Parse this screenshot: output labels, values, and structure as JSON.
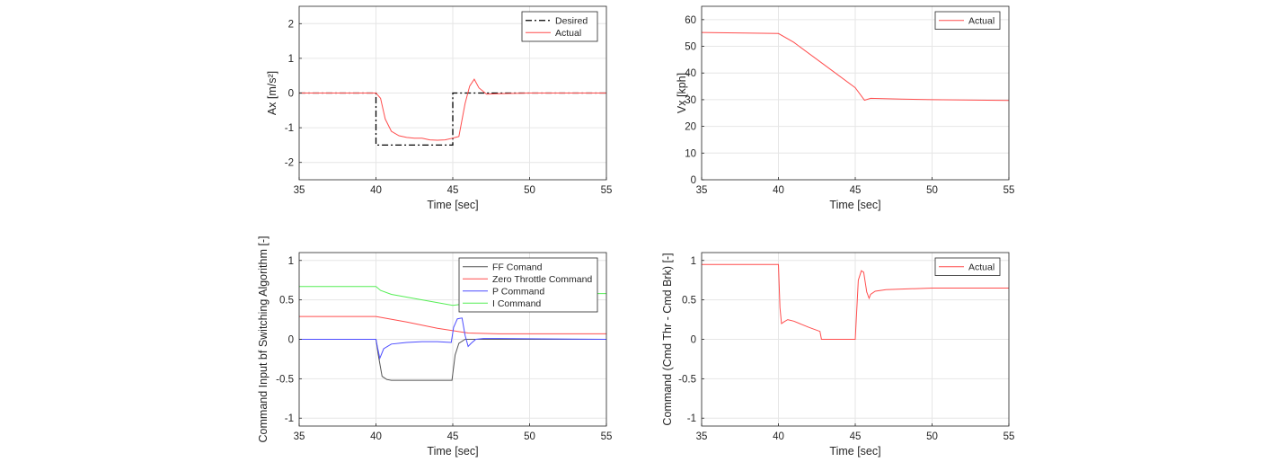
{
  "chart_data": [
    {
      "id": "ax",
      "type": "line",
      "xlabel": "Time [sec]",
      "ylabel": "Ax [m/s²]",
      "xlim": [
        35,
        55
      ],
      "ylim": [
        -2.5,
        2.5
      ],
      "xticks": [
        35,
        40,
        45,
        50,
        55
      ],
      "xtick_labels": [
        "35",
        "40",
        "45",
        "50",
        "55"
      ],
      "yticks": [
        -2,
        -1,
        0,
        1,
        2
      ],
      "ytick_labels": [
        "-2",
        "-1",
        "0",
        "1",
        "2"
      ],
      "grid": true,
      "legend_position": "top-right",
      "series": [
        {
          "name": "Desired",
          "color": "#000000",
          "style": "dashdot",
          "x": [
            35,
            40,
            40,
            45,
            45,
            55
          ],
          "y": [
            0,
            0,
            -1.5,
            -1.5,
            0,
            0
          ]
        },
        {
          "name": "Actual",
          "color": "#ff4d4d",
          "style": "solid",
          "x": [
            35,
            40,
            40.3,
            40.6,
            41,
            41.5,
            42,
            42.5,
            43,
            43.5,
            44,
            44.5,
            45,
            45.4,
            45.8,
            46.1,
            46.4,
            46.7,
            47.2,
            48,
            50,
            55
          ],
          "y": [
            0,
            0,
            -0.15,
            -0.75,
            -1.1,
            -1.23,
            -1.28,
            -1.3,
            -1.3,
            -1.35,
            -1.36,
            -1.35,
            -1.3,
            -1.25,
            -0.3,
            0.2,
            0.4,
            0.15,
            -0.03,
            -0.02,
            0,
            0
          ]
        }
      ]
    },
    {
      "id": "vx",
      "type": "line",
      "xlabel": "Time [sec]",
      "ylabel": "Vx [kph]",
      "xlim": [
        35,
        55
      ],
      "ylim": [
        0,
        65
      ],
      "xticks": [
        35,
        40,
        45,
        50,
        55
      ],
      "xtick_labels": [
        "35",
        "40",
        "45",
        "50",
        "55"
      ],
      "yticks": [
        0,
        10,
        20,
        30,
        40,
        50,
        60
      ],
      "ytick_labels": [
        "0",
        "10",
        "20",
        "30",
        "40",
        "50",
        "60"
      ],
      "grid": true,
      "legend_position": "top-right",
      "series": [
        {
          "name": "Actual",
          "color": "#ff4d4d",
          "style": "solid",
          "x": [
            35,
            40,
            41,
            43,
            45,
            45.6,
            46,
            48,
            50,
            55
          ],
          "y": [
            55.2,
            54.8,
            51.5,
            43,
            34.5,
            29.8,
            30.5,
            30.2,
            30,
            29.7
          ]
        }
      ]
    },
    {
      "id": "cmd",
      "type": "line",
      "xlabel": "Time [sec]",
      "ylabel": "Command Input bf Switching Algorithm [-]",
      "xlim": [
        35,
        55
      ],
      "ylim": [
        -1.1,
        1.1
      ],
      "xticks": [
        35,
        40,
        45,
        50,
        55
      ],
      "xtick_labels": [
        "35",
        "40",
        "45",
        "50",
        "55"
      ],
      "yticks": [
        -1,
        -0.5,
        0,
        0.5,
        1
      ],
      "ytick_labels": [
        "-1",
        "-0.5",
        "0",
        "0.5",
        "1"
      ],
      "grid": true,
      "legend_position": "top-right",
      "series": [
        {
          "name": "FF Comand",
          "color": "#555555",
          "style": "solid",
          "x": [
            35,
            40,
            40.15,
            40.4,
            40.7,
            41,
            44.95,
            45.15,
            45.4,
            45.8,
            55
          ],
          "y": [
            0,
            0,
            -0.2,
            -0.47,
            -0.51,
            -0.52,
            -0.52,
            -0.2,
            -0.05,
            0,
            0
          ]
        },
        {
          "name": "Zero Throttle Command",
          "color": "#ff4d4d",
          "style": "solid",
          "x": [
            35,
            40,
            42,
            44,
            46,
            48,
            50,
            55
          ],
          "y": [
            0.29,
            0.29,
            0.22,
            0.14,
            0.08,
            0.07,
            0.07,
            0.07
          ]
        },
        {
          "name": "P Command",
          "color": "#4d4dff",
          "style": "solid",
          "x": [
            35,
            40,
            40.1,
            40.25,
            40.5,
            41,
            42,
            43,
            44,
            44.9,
            45.05,
            45.3,
            45.6,
            45.8,
            46,
            46.2,
            46.5,
            47,
            48,
            55
          ],
          "y": [
            0,
            0,
            -0.1,
            -0.24,
            -0.12,
            -0.06,
            -0.04,
            -0.03,
            -0.03,
            -0.04,
            0.15,
            0.26,
            0.27,
            0.05,
            -0.09,
            -0.05,
            0,
            0.01,
            0.01,
            0
          ]
        },
        {
          "name": "I Command",
          "color": "#55ee55",
          "style": "solid",
          "x": [
            35,
            40,
            40.3,
            41,
            43,
            45,
            45.4,
            46,
            48,
            50,
            55
          ],
          "y": [
            0.67,
            0.67,
            0.62,
            0.57,
            0.5,
            0.43,
            0.44,
            0.52,
            0.57,
            0.58,
            0.58
          ]
        }
      ]
    },
    {
      "id": "diff",
      "type": "line",
      "xlabel": "Time [sec]",
      "ylabel": "Command (Cmd Thr - Cmd Brk) [-]",
      "xlim": [
        35,
        55
      ],
      "ylim": [
        -1.1,
        1.1
      ],
      "xticks": [
        35,
        40,
        45,
        50,
        55
      ],
      "xtick_labels": [
        "35",
        "40",
        "45",
        "50",
        "55"
      ],
      "yticks": [
        -1,
        -0.5,
        0,
        0.5,
        1
      ],
      "ytick_labels": [
        "-1",
        "-0.5",
        "0",
        "0.5",
        "1"
      ],
      "grid": true,
      "legend_position": "top-right",
      "series": [
        {
          "name": "Actual",
          "color": "#ff4d4d",
          "style": "solid",
          "x": [
            35,
            40,
            40.1,
            40.2,
            40.35,
            40.6,
            41,
            41.5,
            42,
            42.7,
            42.8,
            45,
            45.05,
            45.2,
            45.4,
            45.55,
            45.75,
            45.9,
            46,
            46.3,
            47,
            50,
            55
          ],
          "y": [
            0.95,
            0.95,
            0.4,
            0.2,
            0.22,
            0.25,
            0.23,
            0.19,
            0.15,
            0.1,
            0,
            0,
            0.2,
            0.75,
            0.87,
            0.85,
            0.6,
            0.52,
            0.57,
            0.61,
            0.63,
            0.65,
            0.65
          ]
        }
      ]
    }
  ]
}
